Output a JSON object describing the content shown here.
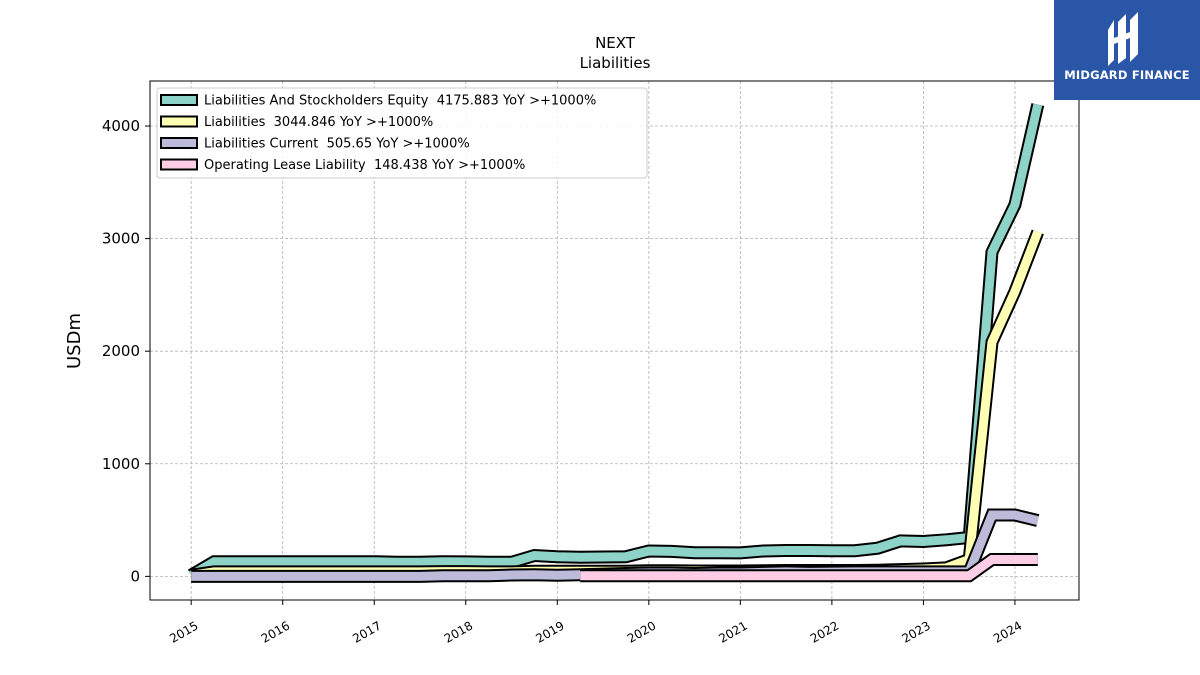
{
  "chart_data": {
    "type": "line",
    "title": "NEXT",
    "subtitle": "Liabilities",
    "ylabel": "USDm",
    "xlabel": "",
    "xlim": [
      2014.55,
      2024.7
    ],
    "ylim": [
      -210,
      4400
    ],
    "yticks": [
      0,
      1000,
      2000,
      3000,
      4000
    ],
    "xticks": [
      "2015",
      "2016",
      "2017",
      "2018",
      "2019",
      "2020",
      "2021",
      "2022",
      "2023",
      "2024"
    ],
    "grid": true,
    "legend_position": "top-left",
    "series": [
      {
        "name": "Liabilities And Stockholders Equity",
        "legend_label": "Liabilities And Stockholders Equity  4175.883 YoY >+1000%",
        "color": "#8dd3c7",
        "x": [
          2015.0,
          2015.25,
          2015.5,
          2015.75,
          2016.0,
          2016.25,
          2016.5,
          2016.75,
          2017.0,
          2017.25,
          2017.5,
          2017.75,
          2018.0,
          2018.25,
          2018.5,
          2018.75,
          2019.0,
          2019.25,
          2019.5,
          2019.75,
          2020.0,
          2020.25,
          2020.5,
          2020.75,
          2021.0,
          2021.25,
          2021.5,
          2021.75,
          2022.0,
          2022.25,
          2022.5,
          2022.75,
          2023.0,
          2023.25,
          2023.5,
          2023.75,
          2024.0,
          2024.25
        ],
        "y": [
          10,
          130,
          130,
          130,
          130,
          130,
          130,
          130,
          130,
          125,
          125,
          130,
          128,
          125,
          125,
          185,
          175,
          170,
          172,
          175,
          225,
          222,
          210,
          210,
          208,
          225,
          230,
          230,
          228,
          228,
          250,
          315,
          310,
          325,
          345,
          2880,
          3300,
          4190
        ]
      },
      {
        "name": "Liabilities",
        "legend_label": "Liabilities  3044.846 YoY >+1000%",
        "color": "#ffffb3",
        "x": [
          2015.0,
          2015.25,
          2015.5,
          2015.75,
          2016.0,
          2016.25,
          2016.5,
          2016.75,
          2017.0,
          2017.25,
          2017.5,
          2017.75,
          2018.0,
          2018.25,
          2018.5,
          2018.75,
          2019.0,
          2019.25,
          2019.5,
          2019.75,
          2020.0,
          2020.25,
          2020.5,
          2020.75,
          2021.0,
          2021.25,
          2021.5,
          2021.75,
          2022.0,
          2022.25,
          2022.5,
          2022.75,
          2023.0,
          2023.25,
          2023.5,
          2023.75,
          2024.0,
          2024.25
        ],
        "y": [
          10,
          40,
          40,
          40,
          40,
          40,
          40,
          40,
          40,
          40,
          40,
          42,
          42,
          40,
          40,
          45,
          45,
          45,
          45,
          45,
          50,
          50,
          48,
          48,
          48,
          50,
          52,
          52,
          52,
          52,
          55,
          60,
          65,
          75,
          150,
          2080,
          2530,
          3060
        ]
      },
      {
        "name": "Liabilities Current",
        "legend_label": "Liabilities Current  505.65 YoY >+1000%",
        "color": "#bebada",
        "x": [
          2015.0,
          2015.25,
          2015.5,
          2015.75,
          2016.0,
          2016.25,
          2016.5,
          2016.75,
          2017.0,
          2017.25,
          2017.5,
          2017.75,
          2018.0,
          2018.25,
          2018.5,
          2018.75,
          2019.0,
          2019.25,
          2019.5,
          2019.75,
          2020.0,
          2020.25,
          2020.5,
          2020.75,
          2021.0,
          2021.25,
          2021.5,
          2021.75,
          2022.0,
          2022.25,
          2022.5,
          2022.75,
          2023.0,
          2023.25,
          2023.5,
          2023.75,
          2024.0,
          2024.25
        ],
        "y": [
          0,
          0,
          0,
          0,
          0,
          0,
          0,
          0,
          0,
          0,
          0,
          5,
          5,
          5,
          12,
          15,
          10,
          15,
          20,
          25,
          30,
          30,
          25,
          30,
          30,
          35,
          40,
          35,
          38,
          40,
          40,
          40,
          40,
          40,
          40,
          545,
          545,
          495
        ]
      },
      {
        "name": "Operating Lease Liability",
        "legend_label": "Operating Lease Liability  148.438 YoY >+1000%",
        "color": "#fccde5",
        "x": [
          2019.25,
          2019.5,
          2019.75,
          2020.0,
          2020.25,
          2020.5,
          2020.75,
          2021.0,
          2021.25,
          2021.5,
          2021.75,
          2022.0,
          2022.25,
          2022.5,
          2022.75,
          2023.0,
          2023.25,
          2023.5,
          2023.75,
          2024.0,
          2024.25
        ],
        "y": [
          5,
          5,
          5,
          5,
          5,
          5,
          5,
          5,
          5,
          5,
          5,
          5,
          5,
          5,
          5,
          5,
          5,
          5,
          150,
          150,
          150
        ]
      }
    ]
  },
  "logo": {
    "text": "MIDGARD FINANCE",
    "icon": "midgard-logo-icon",
    "background": "#2a56a8"
  }
}
